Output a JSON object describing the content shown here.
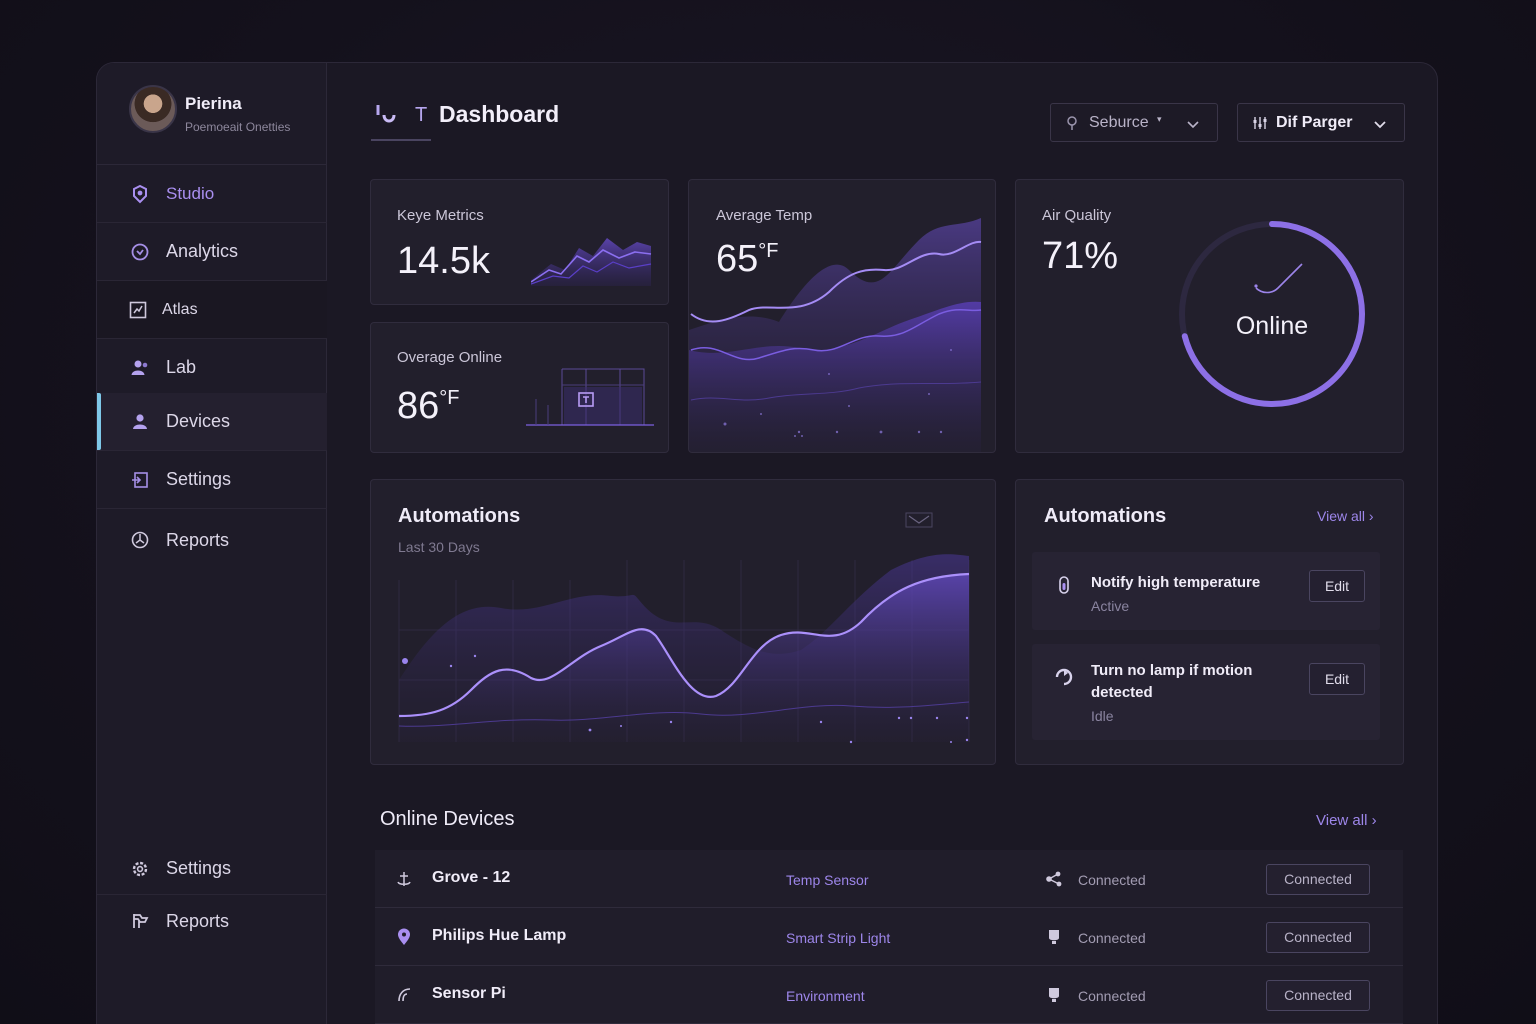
{
  "profile": {
    "name": "Pierina",
    "subtitle": "Poemoeait Onetties"
  },
  "sidebar": {
    "items": [
      {
        "label": "Studio",
        "icon": "studio-icon"
      },
      {
        "label": "Analytics",
        "icon": "analytics-icon"
      },
      {
        "label": "Atlas",
        "icon": "atlas-icon"
      },
      {
        "label": "Lab",
        "icon": "lab-icon"
      },
      {
        "label": "Devices",
        "icon": "devices-icon",
        "active": true
      },
      {
        "label": "Settings",
        "icon": "settings-icon"
      },
      {
        "label": "Reports",
        "icon": "reports-icon"
      }
    ],
    "bottom_items": [
      {
        "label": "Settings",
        "icon": "gear-icon"
      },
      {
        "label": "Reports",
        "icon": "reports-icon"
      }
    ]
  },
  "header": {
    "title": "Dashboard",
    "brand_letter": "T",
    "source_dropdown": "Seburce",
    "range_dropdown": "Dif Parger"
  },
  "metrics": {
    "keye": {
      "label": "Keye Metrics",
      "value": "14.5k"
    },
    "avg_online": {
      "label": "Overage Online",
      "value": "86",
      "unit": "°F"
    },
    "avg_temp": {
      "label": "Average Temp",
      "value": "65",
      "unit": "°F"
    },
    "air_quality": {
      "label": "Air Quality",
      "value": "71%",
      "status": "Online",
      "fraction": 0.71
    }
  },
  "automations_chart": {
    "title": "Automations",
    "subtitle": "Last 30 Days"
  },
  "automations_list": {
    "title": "Automations",
    "view_all": "View all",
    "items": [
      {
        "title": "Notify high temperature",
        "status": "Active",
        "action": "Edit"
      },
      {
        "title": "Turn no lamp if motion detected",
        "status": "Idle",
        "action": "Edit"
      }
    ]
  },
  "devices": {
    "title": "Online Devices",
    "view_all": "View all",
    "rows": [
      {
        "name": "Grove - 12",
        "type": "Temp Sensor",
        "connection": "Connected",
        "badge": "Connected",
        "icon": "anchor-icon",
        "conn_icon": "share-icon"
      },
      {
        "name": "Philips Hue Lamp",
        "type": "Smart Strip Light",
        "connection": "Connected",
        "badge": "Connected",
        "icon": "location-pin-icon",
        "conn_icon": "lamp-icon"
      },
      {
        "name": "Sensor Pi",
        "type": "Environment",
        "connection": "Connected",
        "badge": "Connected",
        "icon": "signal-icon",
        "conn_icon": "lamp-icon"
      }
    ]
  },
  "colors": {
    "accent": "#9d86ea",
    "accent_line": "#a78bfa",
    "background": "#14111c",
    "card": "#221f2c",
    "active_indicator": "#7ec8e8"
  }
}
